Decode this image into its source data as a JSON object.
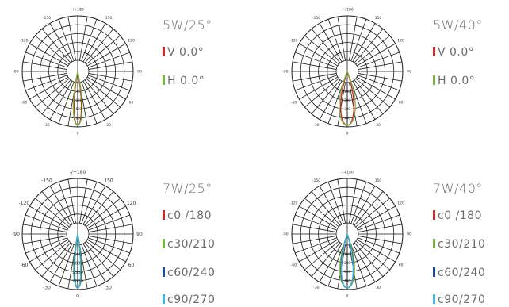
{
  "chart_data": [
    {
      "type": "polar",
      "title": "5W/25°",
      "angle_labels": [
        "0",
        "30",
        "60",
        "90",
        "120",
        "150",
        "-/+180",
        "-150",
        "-120",
        "-90",
        "-60",
        "-30"
      ],
      "radial_labels": [
        "500",
        "1000",
        "1500",
        "2000"
      ],
      "rmax": 2000,
      "series": [
        {
          "name": "V 0.0°",
          "color": "#cc2a2a",
          "half_angle_deg": 10,
          "peak": 2000
        },
        {
          "name": "H 0.0°",
          "color": "#7ab342",
          "half_angle_deg": 12,
          "peak": 2000
        }
      ]
    },
    {
      "type": "polar",
      "title": "5W/40°",
      "angle_labels": [
        "0",
        "30",
        "60",
        "90",
        "120",
        "150",
        "-/+180",
        "-150",
        "-120",
        "-90",
        "-60",
        "-30"
      ],
      "radial_labels": [
        "100",
        "200",
        "300",
        "400"
      ],
      "rmax": 400,
      "series": [
        {
          "name": "V 0.0°",
          "color": "#cc2a2a",
          "half_angle_deg": 18,
          "peak": 400
        },
        {
          "name": "H 0.0°",
          "color": "#7ab342",
          "half_angle_deg": 22,
          "peak": 400
        }
      ]
    },
    {
      "type": "polar",
      "title": "7W/25°",
      "angle_labels": [
        "0",
        "30",
        "60",
        "90",
        "120",
        "150",
        "-/+180",
        "-150",
        "-120",
        "-90",
        "-60",
        "-30"
      ],
      "radial_labels": [
        "500",
        "1000",
        "1500",
        "2000"
      ],
      "rmax": 2000,
      "series": [
        {
          "name": "c0 /180",
          "color": "#cc2a2a",
          "half_angle_deg": 10,
          "peak": 2000
        },
        {
          "name": "c30/210",
          "color": "#7ab342",
          "half_angle_deg": 11,
          "peak": 2000
        },
        {
          "name": "c60/240",
          "color": "#1f4e9c",
          "half_angle_deg": 9,
          "peak": 2000
        },
        {
          "name": "c90/270",
          "color": "#3fb6df",
          "half_angle_deg": 8,
          "peak": 2000
        }
      ]
    },
    {
      "type": "polar",
      "title": "7W/40°",
      "angle_labels": [
        "0",
        "30",
        "60",
        "90",
        "120",
        "150",
        "-/+180",
        "-150",
        "-120",
        "-90",
        "-60",
        "-30"
      ],
      "radial_labels": [
        "100",
        "200",
        "300",
        "400"
      ],
      "rmax": 400,
      "series": [
        {
          "name": "c0 /180",
          "color": "#cc2a2a",
          "half_angle_deg": 18,
          "peak": 400
        },
        {
          "name": "c30/210",
          "color": "#7ab342",
          "half_angle_deg": 20,
          "peak": 400
        },
        {
          "name": "c60/240",
          "color": "#1f4e9c",
          "half_angle_deg": 17,
          "peak": 400
        },
        {
          "name": "c90/270",
          "color": "#3fb6df",
          "half_angle_deg": 16,
          "peak": 400
        }
      ]
    }
  ]
}
